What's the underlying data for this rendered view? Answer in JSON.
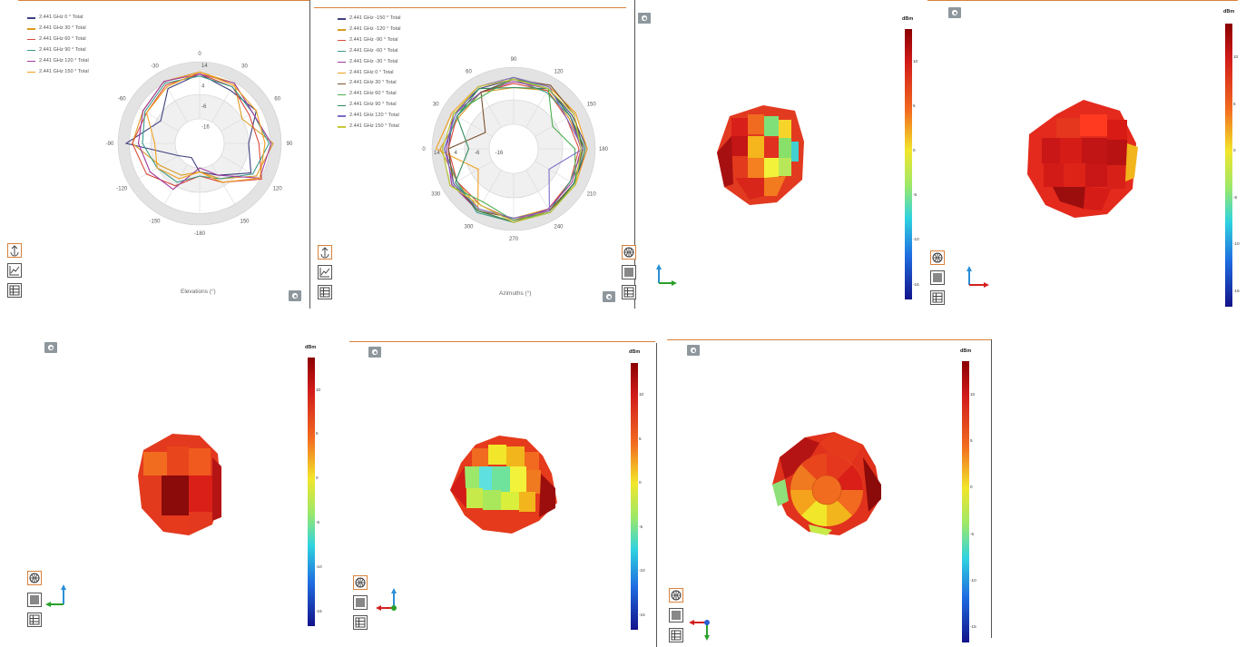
{
  "colorbar": {
    "unit": "dBm",
    "ticks": [
      "10",
      "5",
      "0",
      "-5",
      "-10",
      "-15"
    ]
  },
  "colors": {
    "accent": "#d9823b",
    "series": [
      "#3f3f7f",
      "#d99a1f",
      "#d94b3c",
      "#3a9a8a",
      "#a13a9c",
      "#f0a020",
      "#7a5230",
      "#4caf50",
      "#2e8b57",
      "#7c6bc9",
      "#c8c83a",
      "#4b4bd8"
    ]
  },
  "icons": [
    "gear-icon",
    "polar-plot-icon",
    "line-plot-icon",
    "table-icon",
    "globe-icon",
    "cube-shaded-icon"
  ],
  "chart_data": [
    {
      "type": "line",
      "projection": "polar",
      "xlabel": "Elevations (°)",
      "angle_ticks": [
        "0",
        "30",
        "60",
        "90",
        "120",
        "150",
        "-180",
        "-150",
        "-120",
        "-90",
        "-60",
        "-30"
      ],
      "radial_ticks": [
        "14",
        "4",
        "-6",
        "-16"
      ],
      "rlim": [
        -26,
        14
      ],
      "angles_deg": [
        0,
        30,
        60,
        90,
        120,
        150,
        180,
        -150,
        -120,
        -90,
        -60,
        -30
      ],
      "series": [
        {
          "name": "2.441 GHz 0 ° Total",
          "values": [
            8,
            4,
            6,
            -2,
            3,
            -8,
            -12,
            -18,
            -14,
            10,
            -4,
            5
          ]
        },
        {
          "name": "2.441 GHz 30 ° Total",
          "values": [
            9,
            8,
            -2,
            10,
            6,
            -6,
            -12,
            -8,
            -4,
            7,
            6,
            9
          ]
        },
        {
          "name": "2.441 GHz 60 ° Total",
          "values": [
            8,
            6,
            2,
            3,
            9,
            -4,
            -10,
            -2,
            4,
            7,
            4,
            7
          ]
        },
        {
          "name": "2.441 GHz 90 ° Total",
          "values": [
            7,
            6,
            4,
            8,
            4,
            -6,
            -10,
            -4,
            -2,
            2,
            5,
            8
          ]
        },
        {
          "name": "2.441 GHz 120 ° Total",
          "values": [
            8,
            8,
            4,
            9,
            8,
            -8,
            -14,
            0,
            2,
            4,
            6,
            9
          ]
        },
        {
          "name": "2.441 GHz 150 ° Total",
          "values": [
            9,
            7,
            6,
            6,
            8,
            -4,
            -12,
            -6,
            -2,
            -4,
            4,
            6
          ]
        }
      ]
    },
    {
      "type": "line",
      "projection": "polar",
      "xlabel": "Azimuths (°)",
      "angle_ticks": [
        "270",
        "300",
        "330",
        "0",
        "30",
        "60",
        "90",
        "120",
        "150",
        "180",
        "210",
        "240"
      ],
      "radial_ticks": [
        "14",
        "4",
        "-6",
        "-16"
      ],
      "rlim": [
        -26,
        14
      ],
      "angles_deg": [
        270,
        300,
        330,
        0,
        30,
        60,
        90,
        120,
        150,
        180,
        210,
        240
      ],
      "series": [
        {
          "name": "2.441 GHz -150 ° Total",
          "values": [
            10,
            9,
            8,
            6,
            8,
            8,
            8,
            8,
            7,
            10,
            8,
            9
          ]
        },
        {
          "name": "2.441 GHz -120 ° Total",
          "values": [
            8,
            8,
            6,
            10,
            5,
            6,
            4,
            7,
            5,
            8,
            6,
            8
          ]
        },
        {
          "name": "2.441 GHz -90 ° Total",
          "values": [
            9,
            6,
            6,
            6,
            6,
            6,
            6,
            7,
            4,
            6,
            6,
            8
          ]
        },
        {
          "name": "2.441 GHz -60 ° Total",
          "values": [
            10,
            10,
            6,
            8,
            6,
            6,
            8,
            6,
            6,
            8,
            6,
            9
          ]
        },
        {
          "name": "2.441 GHz -30 ° Total",
          "values": [
            10,
            9,
            9,
            7,
            8,
            6,
            7,
            8,
            6,
            7,
            7,
            8
          ]
        },
        {
          "name": "2.441 GHz 0 ° Total",
          "values": [
            10,
            9,
            -6,
            12,
            9,
            9,
            9,
            9,
            9,
            10,
            9,
            9
          ]
        },
        {
          "name": "2.441 GHz 30 ° Total",
          "values": [
            8,
            9,
            8,
            6,
            -10,
            6,
            8,
            10,
            8,
            8,
            8,
            9
          ]
        },
        {
          "name": "2.441 GHz 60 ° Total",
          "values": [
            9,
            4,
            10,
            9,
            8,
            4,
            9,
            8,
            -4,
            4,
            9,
            10
          ]
        },
        {
          "name": "2.441 GHz 90 ° Total",
          "values": [
            10,
            9,
            7,
            -4,
            6,
            8,
            4,
            8,
            6,
            9,
            8,
            10
          ]
        },
        {
          "name": "2.441 GHz 120 ° Total",
          "values": [
            8,
            8,
            8,
            8,
            7,
            9,
            9,
            9,
            4,
            8,
            -6,
            9
          ]
        },
        {
          "name": "2.441 GHz 150 ° Total",
          "values": [
            10,
            6,
            10,
            9,
            8,
            9,
            8,
            8,
            8,
            7,
            9,
            10
          ]
        }
      ]
    }
  ]
}
